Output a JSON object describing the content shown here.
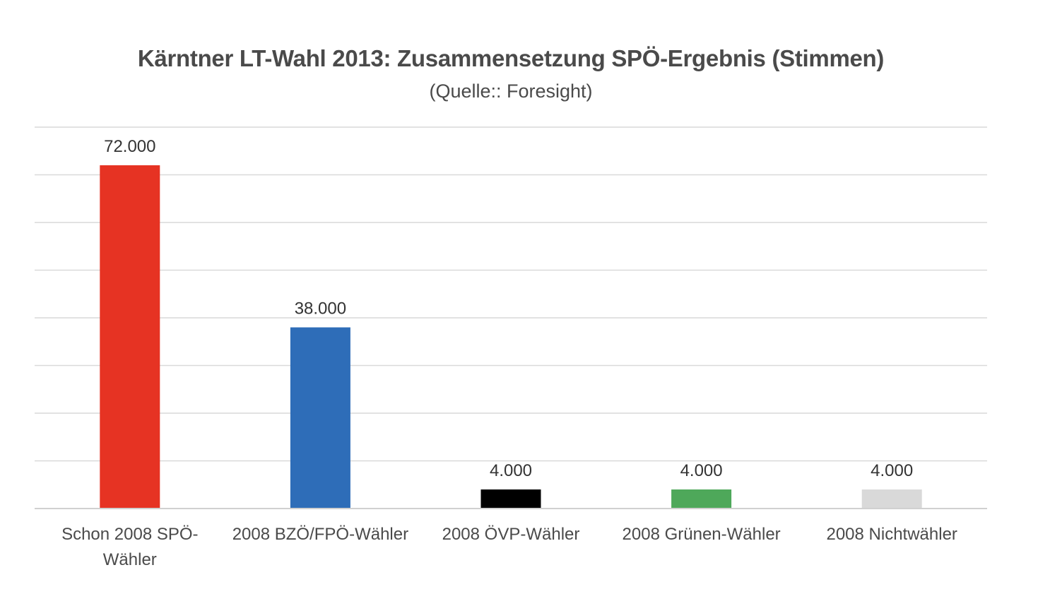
{
  "chart_data": {
    "type": "bar",
    "title": "Kärntner LT-Wahl 2013: Zusammensetzung SPÖ-Ergebnis (Stimmen)",
    "subtitle": "(Quelle:: Foresight)",
    "categories": [
      [
        "Schon 2008 SPÖ-",
        "Wähler"
      ],
      [
        "2008 BZÖ/FPÖ-Wähler"
      ],
      [
        "2008 ÖVP-Wähler"
      ],
      [
        "2008 Grünen-Wähler"
      ],
      [
        "2008 Nichtwähler"
      ]
    ],
    "values": [
      72000,
      38000,
      4000,
      4000,
      4000
    ],
    "value_labels": [
      "72.000",
      "38.000",
      "4.000",
      "4.000",
      "4.000"
    ],
    "colors": [
      "#E63323",
      "#2E6DB8",
      "#000000",
      "#4EA85A",
      "#D9D9D9"
    ],
    "xlabel": "",
    "ylabel": "",
    "ylim": [
      0,
      80000
    ],
    "grid": true,
    "legend": "none"
  }
}
